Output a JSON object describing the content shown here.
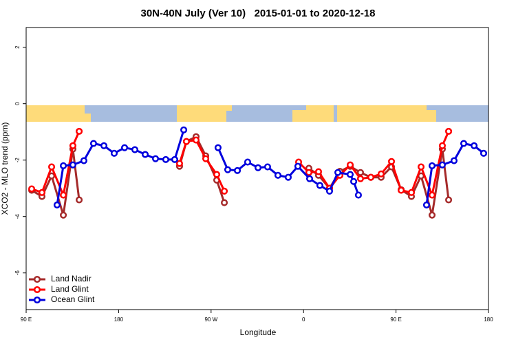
{
  "chart_data": {
    "type": "line",
    "title": "30N-40N July (Ver 10)   2015-01-01 to 2020-12-18",
    "x_label": "Longitude",
    "y_label": "XCO2 - MLO trend (ppm)",
    "xlim": [
      90,
      540
    ],
    "ylim": [
      -7.3,
      2.7
    ],
    "xticks": [
      {
        "value": 90,
        "label": "90 E"
      },
      {
        "value": 180,
        "label": "180"
      },
      {
        "value": 270,
        "label": "90 W"
      },
      {
        "value": 360,
        "label": "0"
      },
      {
        "value": 450,
        "label": "90 E"
      },
      {
        "value": 540,
        "label": "180"
      }
    ],
    "yticks": [
      2,
      0,
      -2,
      -4,
      -6
    ],
    "legend": "bottom-left",
    "series": [
      {
        "name": "Land Nadir",
        "color": "#a52a2a",
        "x": [
          95.4,
          105.4,
          114.8,
          126.2,
          135.5,
          141.6,
          null,
          239.3,
          246,
          255.4,
          264.8,
          275.5,
          282.9,
          null,
          365.2,
          374.6,
          385.3,
          395.4,
          405.4,
          415.4,
          425.5,
          435.5,
          445.6,
          455,
          465,
          474.4,
          485.1,
          495.1,
          501.2
        ],
        "values": [
          -3.07,
          -3.29,
          -2.56,
          -3.95,
          -1.61,
          -3.41,
          null,
          -2.22,
          -1.34,
          -1.17,
          -1.85,
          -2.71,
          -3.51,
          null,
          -2.29,
          -2.54,
          -3.0,
          -2.4,
          -2.22,
          -2.44,
          -2.61,
          -2.61,
          -2.24,
          -3.05,
          -3.29,
          -2.56,
          -3.95,
          -1.61,
          -3.41
        ]
      },
      {
        "name": "Land Glint",
        "color": "#ff0000",
        "x": [
          95.4,
          105.4,
          114.8,
          126.2,
          135.5,
          141.6,
          null,
          239.3,
          246,
          255.4,
          264.8,
          275.5,
          282.9,
          null,
          355.2,
          365.2,
          374.6,
          385.3,
          395.4,
          405.4,
          415.4,
          425.5,
          435.5,
          445.6,
          455,
          465,
          474.4,
          485.1,
          495.1,
          501.2
        ],
        "values": [
          -3.02,
          -3.15,
          -2.24,
          -3.24,
          -1.49,
          -0.98,
          null,
          -2.12,
          -1.34,
          -1.29,
          -1.95,
          -2.51,
          -3.1,
          null,
          -2.07,
          -2.44,
          -2.41,
          -3.0,
          -2.54,
          -2.17,
          -2.66,
          -2.61,
          -2.49,
          -2.05,
          -3.07,
          -3.15,
          -2.24,
          -3.24,
          -1.49,
          -0.98
        ]
      },
      {
        "name": "Ocean Glint",
        "color": "#0000dd",
        "x": [
          120.1,
          126.2,
          135.5,
          146.2,
          155.6,
          165.7,
          175.7,
          185.8,
          195.8,
          205.9,
          215.9,
          225.9,
          234.6,
          243.4,
          null,
          276.8,
          286.2,
          295.6,
          305.6,
          315.7,
          325,
          335.1,
          345.1,
          354.5,
          365.9,
          375.9,
          385.3,
          393.4,
          405.4,
          408.8,
          413.4,
          null,
          479.7,
          485.1,
          495.1,
          506.5,
          515.9,
          526,
          535.3
        ],
        "values": [
          -3.59,
          -2.2,
          -2.17,
          -2.02,
          -1.41,
          -1.49,
          -1.76,
          -1.56,
          -1.63,
          -1.8,
          -1.95,
          -1.98,
          -1.98,
          -0.93,
          null,
          -1.56,
          -2.34,
          -2.37,
          -2.07,
          -2.27,
          -2.24,
          -2.54,
          -2.61,
          -2.22,
          -2.66,
          -2.9,
          -3.1,
          -2.44,
          -2.51,
          -2.76,
          -3.24,
          null,
          -3.59,
          -2.2,
          -2.17,
          -2.02,
          -1.41,
          -1.49,
          -1.76
        ]
      }
    ]
  }
}
